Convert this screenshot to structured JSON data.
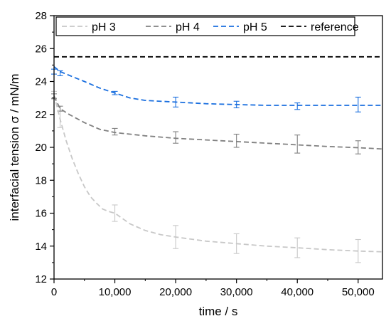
{
  "chart_data": {
    "type": "line",
    "xlabel": "time / s",
    "ylabel": "interfacial tension σ / mN/m",
    "xlim": [
      0,
      54000
    ],
    "ylim": [
      12,
      28
    ],
    "x_ticks": [
      0,
      10000,
      20000,
      30000,
      40000,
      50000
    ],
    "x_tick_labels": [
      "0",
      "10,000",
      "20,000",
      "30,000",
      "40,000",
      "50,000"
    ],
    "y_ticks": [
      12,
      14,
      16,
      18,
      20,
      22,
      24,
      26,
      28
    ],
    "y_tick_labels": [
      "12",
      "14",
      "16",
      "18",
      "20",
      "22",
      "24",
      "26",
      "28"
    ],
    "grid": false,
    "legend_position": "top",
    "series": [
      {
        "name": "pH 3",
        "color": "#c8c8c8",
        "line_style": "dashed",
        "x": [
          0,
          1000,
          10000,
          20000,
          30000,
          40000,
          50000
        ],
        "y": [
          23.2,
          21.7,
          16.0,
          14.55,
          14.15,
          13.9,
          13.7
        ],
        "err": [
          0.2,
          0.5,
          0.5,
          0.7,
          0.6,
          0.6,
          0.7
        ],
        "curve_x": [
          0,
          1000,
          2000,
          3000,
          4000,
          5000,
          6000,
          7000,
          8000,
          9000,
          10000,
          12500,
          15000,
          17500,
          20000,
          25000,
          30000,
          35000,
          40000,
          45000,
          50000,
          54000
        ],
        "curve_y": [
          23.2,
          21.7,
          20.4,
          19.3,
          18.4,
          17.6,
          17.0,
          16.6,
          16.25,
          16.1,
          16.0,
          15.35,
          14.95,
          14.7,
          14.55,
          14.3,
          14.15,
          14.0,
          13.9,
          13.78,
          13.7,
          13.65
        ]
      },
      {
        "name": "pH 4",
        "color": "#808080",
        "line_style": "dashed",
        "x": [
          0,
          1000,
          10000,
          20000,
          30000,
          40000,
          50000
        ],
        "y": [
          23.1,
          22.35,
          20.95,
          20.6,
          20.4,
          20.2,
          20.0
        ],
        "err": [
          0.15,
          0.15,
          0.2,
          0.35,
          0.4,
          0.55,
          0.4
        ],
        "curve_x": [
          0,
          1000,
          2500,
          5000,
          7500,
          10000,
          15000,
          20000,
          25000,
          30000,
          35000,
          40000,
          45000,
          50000,
          54000
        ],
        "curve_y": [
          23.1,
          22.35,
          22.0,
          21.5,
          21.1,
          20.9,
          20.7,
          20.55,
          20.45,
          20.35,
          20.25,
          20.15,
          20.05,
          19.98,
          19.9
        ]
      },
      {
        "name": "pH 5",
        "color": "#1a6fdf",
        "line_style": "dashed",
        "x": [
          0,
          1000,
          10000,
          20000,
          30000,
          40000,
          50000
        ],
        "y": [
          24.6,
          24.5,
          23.3,
          22.75,
          22.6,
          22.5,
          22.6
        ],
        "err": [
          0.15,
          0.15,
          0.1,
          0.3,
          0.2,
          0.2,
          0.45
        ],
        "curve_x": [
          0,
          1000,
          3000,
          5000,
          7500,
          10000,
          12500,
          15000,
          20000,
          25000,
          30000,
          35000,
          40000,
          45000,
          50000,
          54000
        ],
        "curve_y": [
          24.9,
          24.6,
          24.3,
          24.0,
          23.6,
          23.3,
          23.0,
          22.85,
          22.75,
          22.65,
          22.6,
          22.55,
          22.55,
          22.55,
          22.55,
          22.55
        ]
      },
      {
        "name": "reference",
        "color": "#000000",
        "line_style": "dashed",
        "x": [],
        "y": [],
        "err": [],
        "curve_x": [
          0,
          54000
        ],
        "curve_y": [
          25.5,
          25.5
        ]
      }
    ]
  }
}
